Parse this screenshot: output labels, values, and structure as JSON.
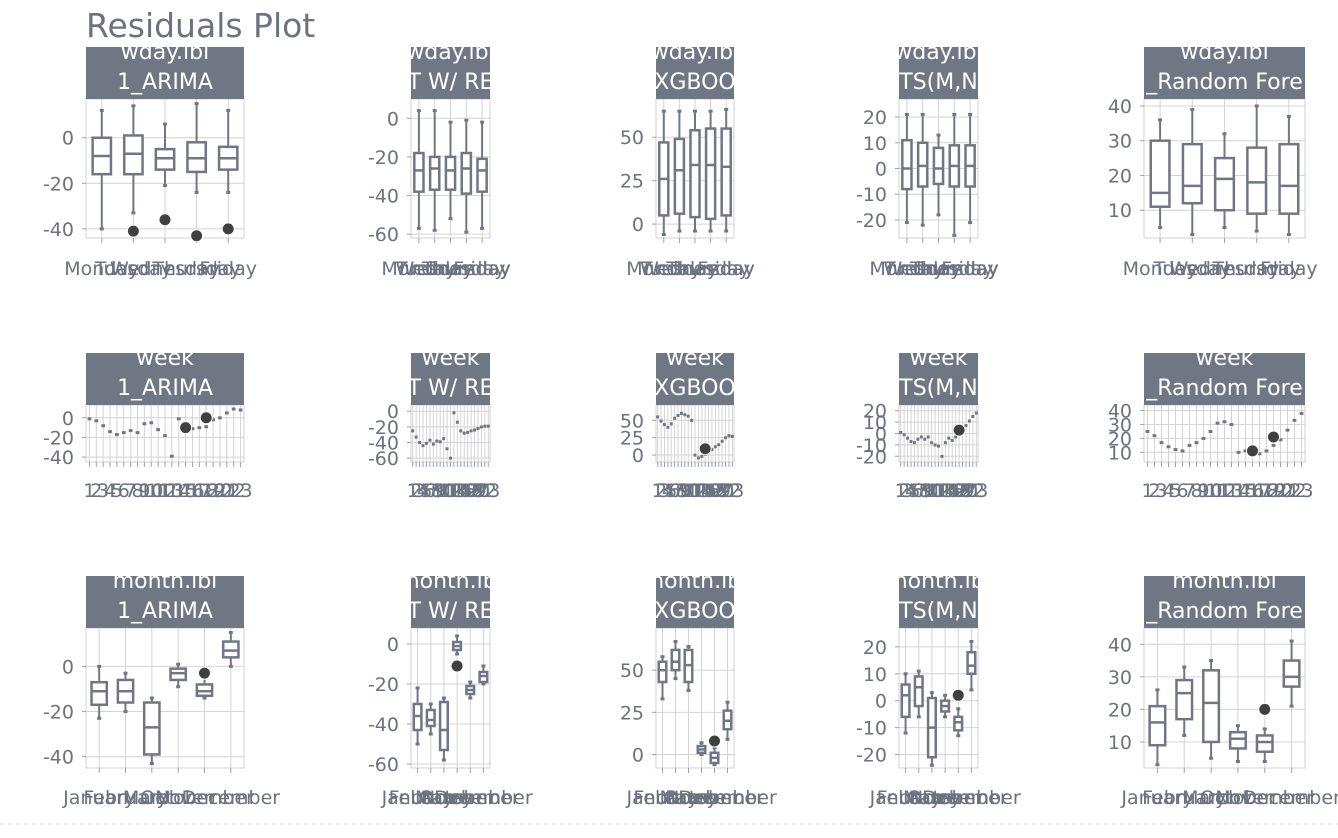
{
  "chart_data": {
    "type": "boxplot-facet-grid",
    "title": "Residuals Plot",
    "colors": {
      "box": "#707784",
      "strip": "#707784",
      "grid": "#d4d4d4",
      "text": "#6b7280",
      "outlier": "#404040",
      "background": "#ffffff"
    },
    "panels": [
      {
        "row": 0,
        "col": 0,
        "strip": [
          "wday.lbl",
          "1_ARIMA"
        ],
        "yticks": [
          0,
          -20,
          -40
        ],
        "ylim": [
          -44,
          17
        ],
        "xlabels": [
          "Monday",
          "Tuesday",
          "Wednesday",
          "Thursday",
          "Friday"
        ],
        "boxes": [
          {
            "lo": -40,
            "q1": -16,
            "med": -8,
            "q3": 0,
            "hi": 12
          },
          {
            "lo": -33,
            "q1": -16,
            "med": -7,
            "q3": 1,
            "hi": 14
          },
          {
            "lo": -21,
            "q1": -14,
            "med": -9,
            "q3": -5,
            "hi": 6
          },
          {
            "lo": -24,
            "q1": -15,
            "med": -9,
            "q3": -2,
            "hi": 15
          },
          {
            "lo": -24,
            "q1": -14,
            "med": -9,
            "q3": -4,
            "hi": 12
          }
        ],
        "outliers": [
          {
            "i": 1,
            "y": -41
          },
          {
            "i": 2,
            "y": -36
          },
          {
            "i": 3,
            "y": -43
          },
          {
            "i": 4,
            "y": -40
          }
        ]
      },
      {
        "row": 0,
        "col": 1,
        "strip": [
          "wday.lbl",
          "T W/ RE"
        ],
        "yticks": [
          0,
          -20,
          -40,
          -60
        ],
        "ylim": [
          -62,
          10
        ],
        "xlabels": [
          "Monday",
          "Tuesday",
          "Wednesday",
          "Thursday",
          "Friday"
        ],
        "boxes": [
          {
            "lo": -57,
            "q1": -38,
            "med": -27,
            "q3": -18,
            "hi": 4
          },
          {
            "lo": -58,
            "q1": -37,
            "med": -26,
            "q3": -20,
            "hi": 4
          },
          {
            "lo": -52,
            "q1": -37,
            "med": -27,
            "q3": -20,
            "hi": -2
          },
          {
            "lo": -59,
            "q1": -39,
            "med": -26,
            "q3": -18,
            "hi": -1
          },
          {
            "lo": -57,
            "q1": -38,
            "med": -27,
            "q3": -21,
            "hi": -2
          }
        ],
        "outliers": []
      },
      {
        "row": 0,
        "col": 2,
        "strip": [
          "wday.lbl",
          "XGBOO"
        ],
        "yticks": [
          50,
          25,
          0
        ],
        "ylim": [
          -8,
          72
        ],
        "xlabels": [
          "Monday",
          "Tuesday",
          "Wednesday",
          "Thursday",
          "Friday"
        ],
        "boxes": [
          {
            "lo": -6,
            "q1": 5,
            "med": 26,
            "q3": 47,
            "hi": 65
          },
          {
            "lo": -4,
            "q1": 6,
            "med": 31,
            "q3": 49,
            "hi": 65
          },
          {
            "lo": -4,
            "q1": 4,
            "med": 34,
            "q3": 54,
            "hi": 65
          },
          {
            "lo": -4,
            "q1": 3,
            "med": 34,
            "q3": 55,
            "hi": 65
          },
          {
            "lo": -4,
            "q1": 5,
            "med": 33,
            "q3": 55,
            "hi": 66
          }
        ],
        "outliers": []
      },
      {
        "row": 0,
        "col": 3,
        "strip": [
          "wday.lbl",
          "TS(M,N"
        ],
        "yticks": [
          20,
          10,
          0,
          -10,
          -20
        ],
        "ylim": [
          -27,
          27
        ],
        "xlabels": [
          "Monday",
          "Tuesday",
          "Wednesday",
          "Thursday",
          "Friday"
        ],
        "boxes": [
          {
            "lo": -21,
            "q1": -8,
            "med": 0,
            "q3": 11,
            "hi": 21
          },
          {
            "lo": -22,
            "q1": -7,
            "med": 1,
            "q3": 10,
            "hi": 21
          },
          {
            "lo": -18,
            "q1": -6,
            "med": 0,
            "q3": 8,
            "hi": 13
          },
          {
            "lo": -26,
            "q1": -7,
            "med": 1,
            "q3": 9,
            "hi": 21
          },
          {
            "lo": -21,
            "q1": -7,
            "med": 1,
            "q3": 9,
            "hi": 21
          }
        ],
        "outliers": []
      },
      {
        "row": 0,
        "col": 4,
        "strip": [
          "wday.lbl",
          "_Random Fore"
        ],
        "yticks": [
          40,
          30,
          20,
          10
        ],
        "ylim": [
          2,
          42
        ],
        "xlabels": [
          "Monday",
          "Tuesday",
          "Wednesday",
          "Thursday",
          "Friday"
        ],
        "boxes": [
          {
            "lo": 5,
            "q1": 11,
            "med": 15,
            "q3": 30,
            "hi": 36
          },
          {
            "lo": 3,
            "q1": 12,
            "med": 17,
            "q3": 29,
            "hi": 39
          },
          {
            "lo": 5,
            "q1": 10,
            "med": 19,
            "q3": 25,
            "hi": 32
          },
          {
            "lo": 4,
            "q1": 9,
            "med": 18,
            "q3": 28,
            "hi": 40
          },
          {
            "lo": 3,
            "q1": 9,
            "med": 17,
            "q3": 29,
            "hi": 37
          }
        ],
        "outliers": []
      },
      {
        "row": 1,
        "col": 0,
        "strip": [
          "week",
          "1_ARIMA"
        ],
        "yticks": [
          0,
          -20,
          -40
        ],
        "ylim": [
          -45,
          13
        ],
        "xlabels": [
          "1",
          "2",
          "3",
          "4",
          "5",
          "6",
          "7",
          "8",
          "9",
          "10",
          "11",
          "12",
          "13",
          "14",
          "15",
          "16",
          "17",
          "18",
          "19",
          "20",
          "21",
          "22",
          "23"
        ],
        "series": [
          -1,
          -3,
          -8,
          -14,
          -17,
          -15,
          -13,
          -15,
          -6,
          -5,
          -12,
          -18,
          -39,
          -1,
          -5,
          -11,
          -10,
          -9,
          -2,
          0,
          5,
          9,
          8
        ],
        "outliers": [
          {
            "i": 14,
            "y": -10
          },
          {
            "i": 17,
            "y": 0
          }
        ]
      },
      {
        "row": 1,
        "col": 1,
        "strip": [
          "week",
          "T W/ RE"
        ],
        "yticks": [
          0,
          -20,
          -40,
          -60
        ],
        "ylim": [
          -65,
          8
        ],
        "xlabels": [
          "1",
          "2",
          "3",
          "4",
          "5",
          "6",
          "7",
          "8",
          "9",
          "10",
          "11",
          "12",
          "13",
          "14",
          "15",
          "16",
          "17",
          "18",
          "19",
          "20",
          "21",
          "22",
          "23"
        ],
        "series": [
          -25,
          -33,
          -40,
          -44,
          -41,
          -37,
          -42,
          -38,
          -39,
          -35,
          -48,
          -60,
          -2,
          -14,
          -25,
          -28,
          -27,
          -25,
          -24,
          -22,
          -20,
          -19,
          -19
        ],
        "outliers": []
      },
      {
        "row": 1,
        "col": 2,
        "strip": [
          "week",
          "XGBOO"
        ],
        "yticks": [
          50,
          25,
          0
        ],
        "ylim": [
          -10,
          72
        ],
        "xlabels": [
          "1",
          "2",
          "3",
          "4",
          "5",
          "6",
          "7",
          "8",
          "9",
          "10",
          "11",
          "12",
          "13",
          "14",
          "15",
          "16",
          "17",
          "18",
          "19",
          "20",
          "21",
          "22",
          "23"
        ],
        "series": [
          55,
          49,
          44,
          40,
          45,
          53,
          57,
          60,
          58,
          56,
          50,
          0,
          -4,
          -2,
          1,
          4,
          8,
          12,
          15,
          20,
          25,
          28,
          27
        ],
        "outliers": [
          {
            "i": 14,
            "y": 9
          }
        ]
      },
      {
        "row": 1,
        "col": 3,
        "strip": [
          "week",
          "TS(M,N"
        ],
        "yticks": [
          20,
          10,
          0,
          -10,
          -20
        ],
        "ylim": [
          -25,
          25
        ],
        "xlabels": [
          "1",
          "2",
          "3",
          "4",
          "5",
          "6",
          "7",
          "8",
          "9",
          "10",
          "11",
          "12",
          "13",
          "14",
          "15",
          "16",
          "17",
          "18",
          "19",
          "20",
          "21",
          "22",
          "23"
        ],
        "series": [
          1,
          -1,
          -4,
          -7,
          -8,
          -5,
          -3,
          -5,
          -3,
          -8,
          -10,
          -11,
          -20,
          -8,
          -4,
          -6,
          -3,
          0,
          3,
          7,
          11,
          15,
          18
        ],
        "outliers": [
          {
            "i": 17,
            "y": 3
          }
        ]
      },
      {
        "row": 1,
        "col": 4,
        "strip": [
          "week",
          "_Random Fore"
        ],
        "yticks": [
          40,
          30,
          20,
          10
        ],
        "ylim": [
          3,
          44
        ],
        "xlabels": [
          "1",
          "2",
          "3",
          "4",
          "5",
          "6",
          "7",
          "8",
          "9",
          "10",
          "11",
          "12",
          "13",
          "14",
          "15",
          "16",
          "17",
          "18",
          "19",
          "20",
          "21",
          "22",
          "23"
        ],
        "series": [
          25,
          22,
          17,
          14,
          12,
          11,
          15,
          17,
          20,
          25,
          31,
          32,
          30,
          10,
          11,
          9,
          9,
          11,
          15,
          19,
          26,
          33,
          38
        ],
        "outliers": [
          {
            "i": 15,
            "y": 11
          },
          {
            "i": 18,
            "y": 21
          }
        ]
      },
      {
        "row": 2,
        "col": 0,
        "strip": [
          "month.lbl",
          "1_ARIMA"
        ],
        "yticks": [
          0,
          -20,
          -40
        ],
        "ylim": [
          -45,
          17
        ],
        "xlabels": [
          "January",
          "February",
          "March",
          "October",
          "November",
          "December"
        ],
        "boxes": [
          {
            "lo": -23,
            "q1": -17,
            "med": -11,
            "q3": -7,
            "hi": 0
          },
          {
            "lo": -20,
            "q1": -16,
            "med": -11,
            "q3": -6,
            "hi": -3
          },
          {
            "lo": -43,
            "q1": -39,
            "med": -27,
            "q3": -16,
            "hi": -14
          },
          {
            "lo": -9,
            "q1": -6,
            "med": -3,
            "q3": -1,
            "hi": 1
          },
          {
            "lo": -14,
            "q1": -13,
            "med": -11,
            "q3": -8,
            "hi": -5
          },
          {
            "lo": 0,
            "q1": 4,
            "med": 7,
            "q3": 11,
            "hi": 15
          }
        ],
        "outliers": [
          {
            "i": 4,
            "y": -3
          }
        ]
      },
      {
        "row": 2,
        "col": 1,
        "strip": [
          "month.lbl",
          "T W/ RE"
        ],
        "yticks": [
          0,
          -20,
          -40,
          -60
        ],
        "ylim": [
          -62,
          8
        ],
        "xlabels": [
          "January",
          "February",
          "March",
          "October",
          "November",
          "December"
        ],
        "boxes": [
          {
            "lo": -50,
            "q1": -43,
            "med": -36,
            "q3": -30,
            "hi": -22
          },
          {
            "lo": -45,
            "q1": -41,
            "med": -38,
            "q3": -33,
            "hi": -30
          },
          {
            "lo": -58,
            "q1": -53,
            "med": -43,
            "q3": -29,
            "hi": -27
          },
          {
            "lo": -5,
            "q1": -3,
            "med": -1,
            "q3": 1,
            "hi": 4
          },
          {
            "lo": -27,
            "q1": -25,
            "med": -23,
            "q3": -21,
            "hi": -19
          },
          {
            "lo": -20,
            "q1": -19,
            "med": -16,
            "q3": -14,
            "hi": -11
          }
        ],
        "outliers": [
          {
            "i": 3,
            "y": -11
          }
        ]
      },
      {
        "row": 2,
        "col": 2,
        "strip": [
          "month.lbl",
          "XGBOO"
        ],
        "yticks": [
          50,
          25,
          0
        ],
        "ylim": [
          -8,
          75
        ],
        "xlabels": [
          "January",
          "February",
          "March",
          "October",
          "November",
          "December"
        ],
        "boxes": [
          {
            "lo": 33,
            "q1": 43,
            "med": 50,
            "q3": 55,
            "hi": 58
          },
          {
            "lo": 45,
            "q1": 50,
            "med": 55,
            "q3": 62,
            "hi": 67
          },
          {
            "lo": 38,
            "q1": 43,
            "med": 53,
            "q3": 62,
            "hi": 64
          },
          {
            "lo": 0,
            "q1": 1,
            "med": 3,
            "q3": 5,
            "hi": 7
          },
          {
            "lo": -6,
            "q1": -5,
            "med": -2,
            "q3": 1,
            "hi": 4
          },
          {
            "lo": 9,
            "q1": 15,
            "med": 20,
            "q3": 26,
            "hi": 31
          }
        ],
        "outliers": [
          {
            "i": 4,
            "y": 8
          }
        ]
      },
      {
        "row": 2,
        "col": 3,
        "strip": [
          "month.lbl",
          "TS(M,N"
        ],
        "yticks": [
          20,
          10,
          0,
          -10,
          -20
        ],
        "ylim": [
          -25,
          27
        ],
        "xlabels": [
          "January",
          "February",
          "March",
          "October",
          "November",
          "December"
        ],
        "boxes": [
          {
            "lo": -12,
            "q1": -6,
            "med": 2,
            "q3": 6,
            "hi": 10
          },
          {
            "lo": -6,
            "q1": -2,
            "med": 5,
            "q3": 9,
            "hi": 11
          },
          {
            "lo": -24,
            "q1": -21,
            "med": -10,
            "q3": 1,
            "hi": 3
          },
          {
            "lo": -6,
            "q1": -4,
            "med": -2,
            "q3": 0,
            "hi": 2
          },
          {
            "lo": -13,
            "q1": -11,
            "med": -8,
            "q3": -6,
            "hi": -3
          },
          {
            "lo": 4,
            "q1": 10,
            "med": 13,
            "q3": 18,
            "hi": 22
          }
        ],
        "outliers": [
          {
            "i": 4,
            "y": 2
          }
        ]
      },
      {
        "row": 2,
        "col": 4,
        "strip": [
          "month.lbl",
          "_Random Fore"
        ],
        "yticks": [
          40,
          30,
          20,
          10
        ],
        "ylim": [
          2,
          45
        ],
        "xlabels": [
          "January",
          "February",
          "March",
          "October",
          "November",
          "December"
        ],
        "boxes": [
          {
            "lo": 3,
            "q1": 9,
            "med": 16,
            "q3": 21,
            "hi": 26
          },
          {
            "lo": 12,
            "q1": 17,
            "med": 25,
            "q3": 29,
            "hi": 33
          },
          {
            "lo": 5,
            "q1": 10,
            "med": 22,
            "q3": 32,
            "hi": 35
          },
          {
            "lo": 4,
            "q1": 8,
            "med": 11,
            "q3": 13,
            "hi": 15
          },
          {
            "lo": 4,
            "q1": 7,
            "med": 10,
            "q3": 12,
            "hi": 14
          },
          {
            "lo": 21,
            "q1": 27,
            "med": 30,
            "q3": 35,
            "hi": 41
          }
        ],
        "outliers": [
          {
            "i": 4,
            "y": 20
          }
        ]
      }
    ]
  }
}
